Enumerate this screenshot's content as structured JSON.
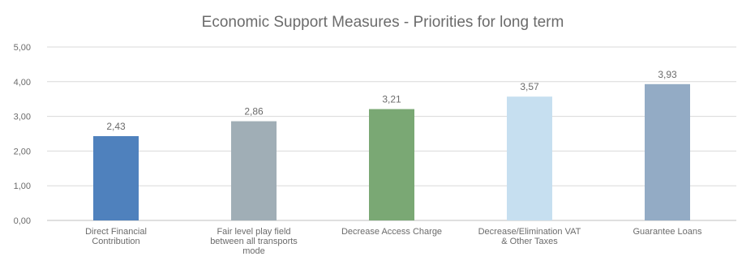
{
  "chart_data": {
    "type": "bar",
    "title": "Economic Support Measures - Priorities for long term",
    "xlabel": "",
    "ylabel": "",
    "ylim": [
      0,
      5
    ],
    "yticks": [
      "0,00",
      "1,00",
      "2,00",
      "3,00",
      "4,00",
      "5,00"
    ],
    "grid": true,
    "legend": "none",
    "categories": [
      [
        "Direct Financial",
        "Contribution"
      ],
      [
        "Fair level play field",
        "between all transports",
        "mode"
      ],
      [
        "Decrease Access Charge"
      ],
      [
        "Decrease/Elimination VAT",
        "& Other Taxes"
      ],
      [
        "Guarantee Loans"
      ]
    ],
    "values": [
      2.43,
      2.86,
      3.21,
      3.57,
      3.93
    ],
    "value_labels": [
      "2,43",
      "2,86",
      "3,21",
      "3,57",
      "3,93"
    ],
    "colors": [
      "#4f81bd",
      "#a0aeb6",
      "#7aa874",
      "#c6dff0",
      "#93abc5"
    ]
  }
}
